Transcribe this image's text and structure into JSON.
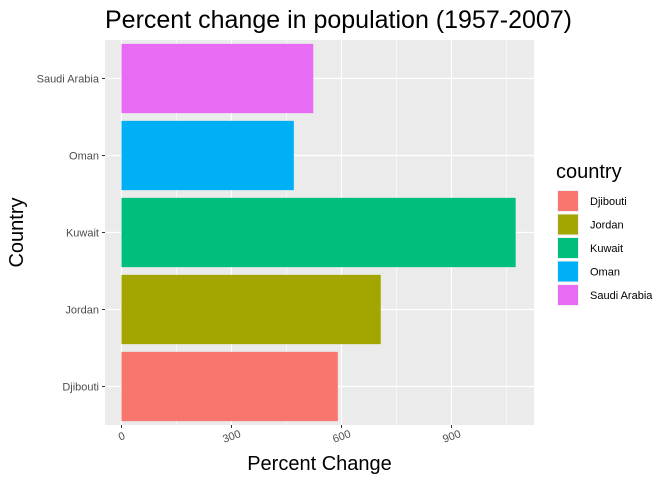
{
  "chart_data": {
    "type": "bar",
    "orientation": "horizontal",
    "title": "Percent change in population (1957-2007)",
    "xlabel": "Percent Change",
    "ylabel": "Country",
    "categories": [
      "Djibouti",
      "Jordan",
      "Kuwait",
      "Oman",
      "Saudi Arabia"
    ],
    "values": [
      590,
      707,
      1075,
      470,
      523
    ],
    "colors": [
      "#F8766D",
      "#A3A500",
      "#00BF7D",
      "#00B0F6",
      "#E76BF3"
    ],
    "xlim": [
      -45,
      1125
    ],
    "xticks": [
      "0",
      "300",
      "600",
      "900"
    ],
    "xtick_values": [
      0,
      300,
      600,
      900
    ],
    "grid": true,
    "panel_background": "#EBEBEB",
    "legend": {
      "title": "country",
      "placement": "right",
      "entries": [
        "Djibouti",
        "Jordan",
        "Kuwait",
        "Oman",
        "Saudi Arabia"
      ]
    }
  }
}
